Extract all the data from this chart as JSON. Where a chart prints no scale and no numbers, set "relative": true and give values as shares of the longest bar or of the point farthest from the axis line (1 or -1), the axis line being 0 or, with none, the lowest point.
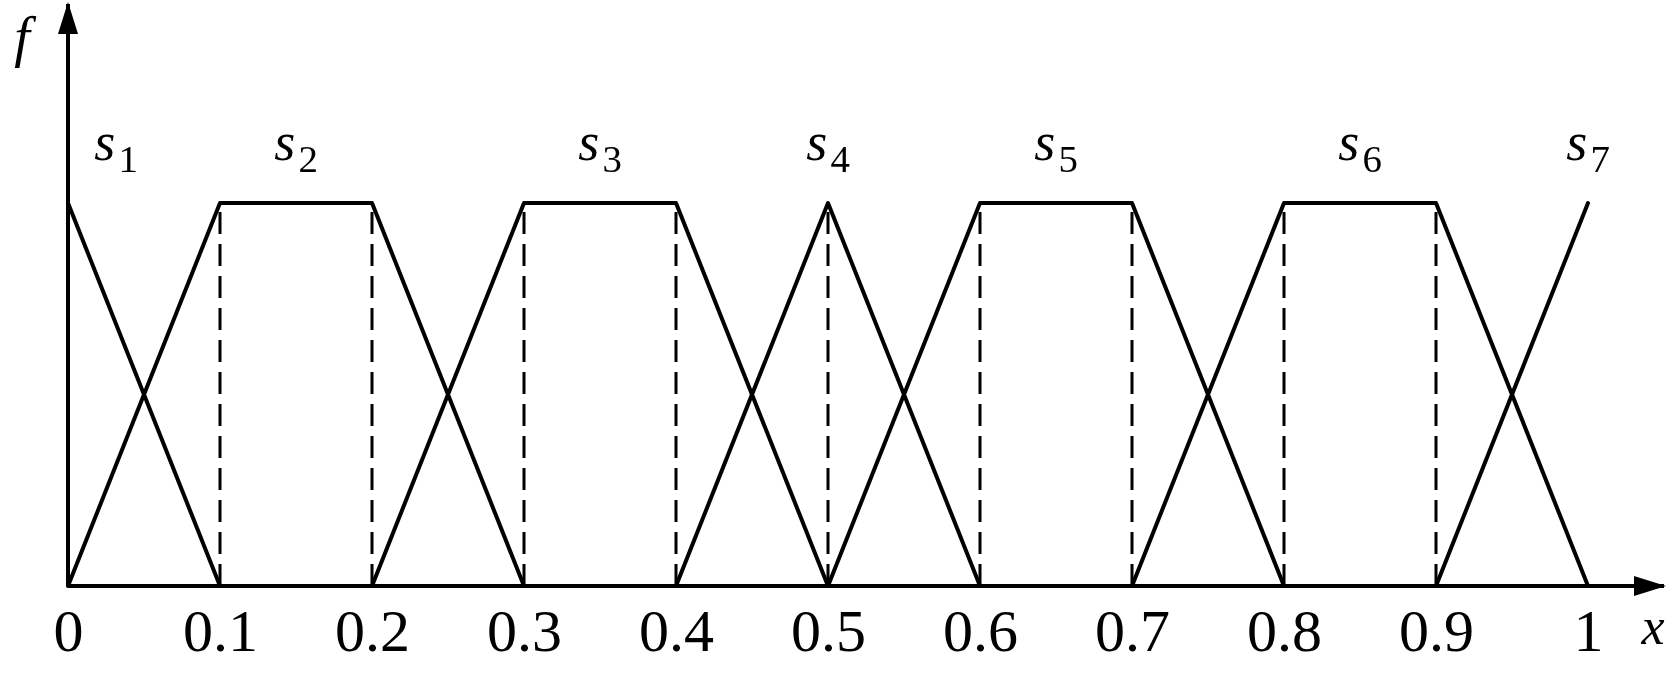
{
  "chart_data": {
    "type": "line",
    "relative": true,
    "xlabel": "x",
    "ylabel": "f",
    "xlim": [
      0,
      1.05
    ],
    "xticks": [
      0,
      0.1,
      0.2,
      0.3,
      0.4,
      0.5,
      0.6,
      0.7,
      0.8,
      0.9,
      1
    ],
    "series": [
      {
        "name": "s$_{1}$",
        "color": "#000000",
        "x": [
          0,
          0.1
        ],
        "values": [
          1,
          0
        ]
      },
      {
        "name": "s$_{2}$",
        "color": "#000000",
        "x": [
          0,
          0.1,
          0.2,
          0.3
        ],
        "values": [
          0,
          1,
          1,
          0
        ]
      },
      {
        "name": "s$_{3}$",
        "color": "#000000",
        "x": [
          0.2,
          0.3,
          0.4,
          0.5
        ],
        "values": [
          0,
          1,
          1,
          0
        ]
      },
      {
        "name": "s$_{4}$",
        "color": "#000000",
        "x": [
          0.4,
          0.5,
          0.6
        ],
        "values": [
          0,
          1,
          0
        ]
      },
      {
        "name": "s$_{5}$",
        "color": "#000000",
        "x": [
          0.5,
          0.6,
          0.7,
          0.8
        ],
        "values": [
          0,
          1,
          1,
          0
        ]
      },
      {
        "name": "s$_{6}$",
        "color": "#000000",
        "x": [
          0.7,
          0.8,
          0.9,
          1
        ],
        "values": [
          0,
          1,
          1,
          0
        ]
      },
      {
        "name": "s$_{7}$",
        "color": "#000000",
        "x": [
          0.9,
          1
        ],
        "values": [
          0,
          1
        ]
      }
    ],
    "ref_lines": [
      {
        "axis": "x",
        "value": 0.1,
        "line_style": "dashed",
        "color": "#000000"
      },
      {
        "axis": "x",
        "value": 0.2,
        "line_style": "dashed",
        "color": "#000000"
      },
      {
        "axis": "x",
        "value": 0.3,
        "line_style": "dashed",
        "color": "#000000"
      },
      {
        "axis": "x",
        "value": 0.4,
        "line_style": "dashed",
        "color": "#000000"
      },
      {
        "axis": "x",
        "value": 0.5,
        "line_style": "dashed",
        "color": "#000000"
      },
      {
        "axis": "x",
        "value": 0.6,
        "line_style": "dashed",
        "color": "#000000"
      },
      {
        "axis": "x",
        "value": 0.7,
        "line_style": "dashed",
        "color": "#000000"
      },
      {
        "axis": "x",
        "value": 0.8,
        "line_style": "dashed",
        "color": "#000000"
      },
      {
        "axis": "x",
        "value": 0.9,
        "line_style": "dashed",
        "color": "#000000"
      }
    ],
    "grid": false,
    "legend": false,
    "marker": "none",
    "line_style": "solid"
  }
}
